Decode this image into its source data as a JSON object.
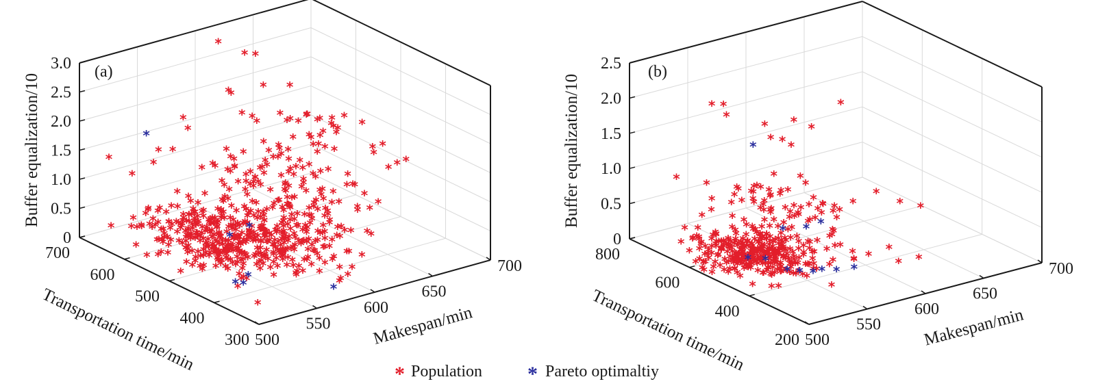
{
  "chart_data": [
    {
      "type": "scatter",
      "panel_label": "(a)",
      "projection": "3d",
      "xlabel": "Makespan/min",
      "ylabel": "Transportation time/min",
      "zlabel": "Buffer equalization/10",
      "xlim": [
        500,
        700
      ],
      "ylim": [
        300,
        700
      ],
      "zlim": [
        0,
        3.0
      ],
      "xticks": [
        "500",
        "550",
        "600",
        "650",
        "700"
      ],
      "yticks": [
        "300",
        "400",
        "500",
        "600",
        "700"
      ],
      "zticks": [
        "0",
        "0.5",
        "1.0",
        "1.5",
        "2.0",
        "2.5",
        "3.0"
      ],
      "grid": true,
      "series": [
        {
          "name": "Population",
          "color": "#e31e2b",
          "marker": "*",
          "clusters": [
            {
              "center": [
                560,
                560,
                0.15
              ],
              "spread": [
                22,
                70,
                0.12
              ],
              "count": 260
            },
            {
              "center": [
                575,
                470,
                0.35
              ],
              "spread": [
                25,
                60,
                0.2
              ],
              "count": 160
            },
            {
              "center": [
                600,
                520,
                0.75
              ],
              "spread": [
                25,
                80,
                0.35
              ],
              "count": 110
            },
            {
              "center": [
                620,
                520,
                1.4
              ],
              "spread": [
                30,
                90,
                0.45
              ],
              "count": 70
            }
          ],
          "points": [
            [
              585,
              610,
              3.2
            ],
            [
              600,
              590,
              3.0
            ],
            [
              545,
              640,
              1.45
            ],
            [
              530,
              660,
              1.05
            ],
            [
              640,
              500,
              1.9
            ],
            [
              655,
              470,
              1.95
            ],
            [
              650,
              540,
              1.3
            ],
            [
              665,
              450,
              1.6
            ],
            [
              640,
              420,
              0.35
            ],
            [
              620,
              380,
              0.2
            ],
            [
              600,
              360,
              0.05
            ],
            [
              585,
              340,
              0.1
            ],
            [
              630,
              470,
              0.9
            ],
            [
              610,
              440,
              1.0
            ],
            [
              620,
              600,
              2.3
            ],
            [
              600,
              620,
              2.2
            ]
          ]
        },
        {
          "name": "Pareto optimaltiy",
          "color": "#2b2f9e",
          "marker": "*",
          "points": [
            [
              550,
              680,
              1.55
            ],
            [
              560,
              520,
              0.35
            ],
            [
              575,
              515,
              0.45
            ],
            [
              530,
              430,
              0.05
            ],
            [
              535,
              425,
              0.02
            ],
            [
              545,
              440,
              0.05
            ],
            [
              580,
              340,
              0.02
            ]
          ]
        }
      ]
    },
    {
      "type": "scatter",
      "panel_label": "(b)",
      "projection": "3d",
      "xlabel": "Makespan/min",
      "ylabel": "Transportation time/min",
      "zlabel": "Buffer equalization/10",
      "xlim": [
        500,
        700
      ],
      "ylim": [
        200,
        800
      ],
      "zlim": [
        0,
        2.5
      ],
      "xticks": [
        "500",
        "550",
        "600",
        "650",
        "700"
      ],
      "yticks": [
        "200",
        "400",
        "600",
        "800"
      ],
      "zticks": [
        "0",
        "0.5",
        "1.0",
        "1.5",
        "2.0",
        "2.5"
      ],
      "grid": true,
      "series": [
        {
          "name": "Population",
          "color": "#e31e2b",
          "marker": "*",
          "clusters": [
            {
              "center": [
                545,
                560,
                0.05
              ],
              "spread": [
                18,
                70,
                0.05
              ],
              "count": 320
            },
            {
              "center": [
                570,
                560,
                0.55
              ],
              "spread": [
                20,
                90,
                0.12
              ],
              "count": 70
            }
          ],
          "points": [
            [
              545,
              700,
              1.9
            ],
            [
              555,
              700,
              1.85
            ],
            [
              555,
              690,
              1.72
            ],
            [
              575,
              640,
              1.6
            ],
            [
              575,
              620,
              1.45
            ],
            [
              585,
              620,
              1.38
            ],
            [
              590,
              610,
              1.3
            ],
            [
              600,
              640,
              1.55
            ],
            [
              610,
              620,
              1.45
            ],
            [
              630,
              600,
              1.75
            ],
            [
              600,
              560,
              0.45
            ],
            [
              620,
              520,
              0.55
            ],
            [
              640,
              520,
              0.6
            ],
            [
              650,
              480,
              0.5
            ],
            [
              660,
              450,
              0.45
            ],
            [
              590,
              400,
              0.1
            ],
            [
              600,
              390,
              0.15
            ],
            [
              615,
              380,
              0.2
            ],
            [
              620,
              300,
              0.2
            ],
            [
              600,
              290,
              0.25
            ],
            [
              530,
              760,
              0.8
            ],
            [
              545,
              700,
              0.55
            ],
            [
              580,
              500,
              0.05
            ],
            [
              595,
              420,
              0.05
            ]
          ]
        },
        {
          "name": "Pareto optimaltiy",
          "color": "#2b2f9e",
          "marker": "*",
          "points": [
            [
              565,
              640,
              1.35
            ],
            [
              570,
              560,
              0.3
            ],
            [
              585,
              540,
              0.3
            ],
            [
              595,
              530,
              0.35
            ],
            [
              540,
              560,
              0.02
            ],
            [
              550,
              540,
              0.0
            ],
            [
              560,
              420,
              0.02
            ],
            [
              565,
              410,
              0.05
            ],
            [
              575,
              400,
              0.02
            ],
            [
              585,
              380,
              0.05
            ],
            [
              548,
              460,
              0.02
            ],
            [
              555,
              445,
              0.0
            ]
          ]
        }
      ]
    }
  ],
  "legend": {
    "placement": "bottom-center",
    "items": [
      {
        "label": "Population",
        "color": "#e31e2b",
        "glyph": "*"
      },
      {
        "label": "Pareto optimaltiy",
        "color": "#2b2f9e",
        "glyph": "*"
      }
    ]
  }
}
